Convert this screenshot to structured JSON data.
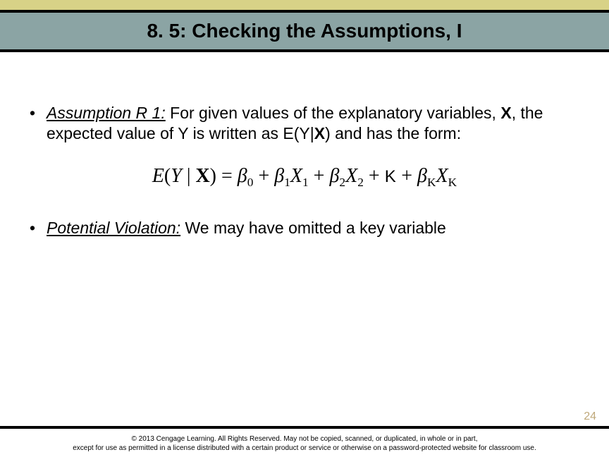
{
  "header": {
    "top_bar_color": "#d8d287",
    "band_color": "#8ba4a4",
    "rule_color": "#000000",
    "title": "8. 5: Checking the Assumptions, I"
  },
  "bullets": [
    {
      "label": "Assumption R 1:",
      "text_before": " For given values of the explanatory variables, ",
      "bold_x": "X",
      "text_mid": ", the expected value of Y is written as E(Y|",
      "bold_x2": "X",
      "text_after": ") and has the form:"
    },
    {
      "label": "Potential Violation:",
      "text": " We may have omitted a key variable"
    }
  ],
  "equation": {
    "parts": {
      "lhs_E": "E",
      "lhs_open": "(",
      "lhs_Y": "Y",
      "lhs_bar": " | ",
      "lhs_X": "X",
      "lhs_close": ")",
      "eq": " = ",
      "b0": "β",
      "s0": "0",
      "plus1": " + ",
      "b1": "β",
      "s1": "1",
      "X1": "X",
      "xs1": "1",
      "plus2": " + ",
      "b2": "β",
      "s2": "2",
      "X2": "X",
      "xs2": "2",
      "plusK": " + ",
      "Ksym": "K",
      "plus3": "  + ",
      "bK": "β",
      "sK": "K",
      "XK": "X",
      "xsK": "K"
    }
  },
  "footer": {
    "page_number": "24",
    "copyright_line1": "© 2013 Cengage Learning. All Rights Reserved. May not be copied, scanned, or duplicated, in whole or in part,",
    "copyright_line2": "except for use as permitted in a license distributed with a certain product or service or otherwise on a password-protected website for classroom use."
  }
}
